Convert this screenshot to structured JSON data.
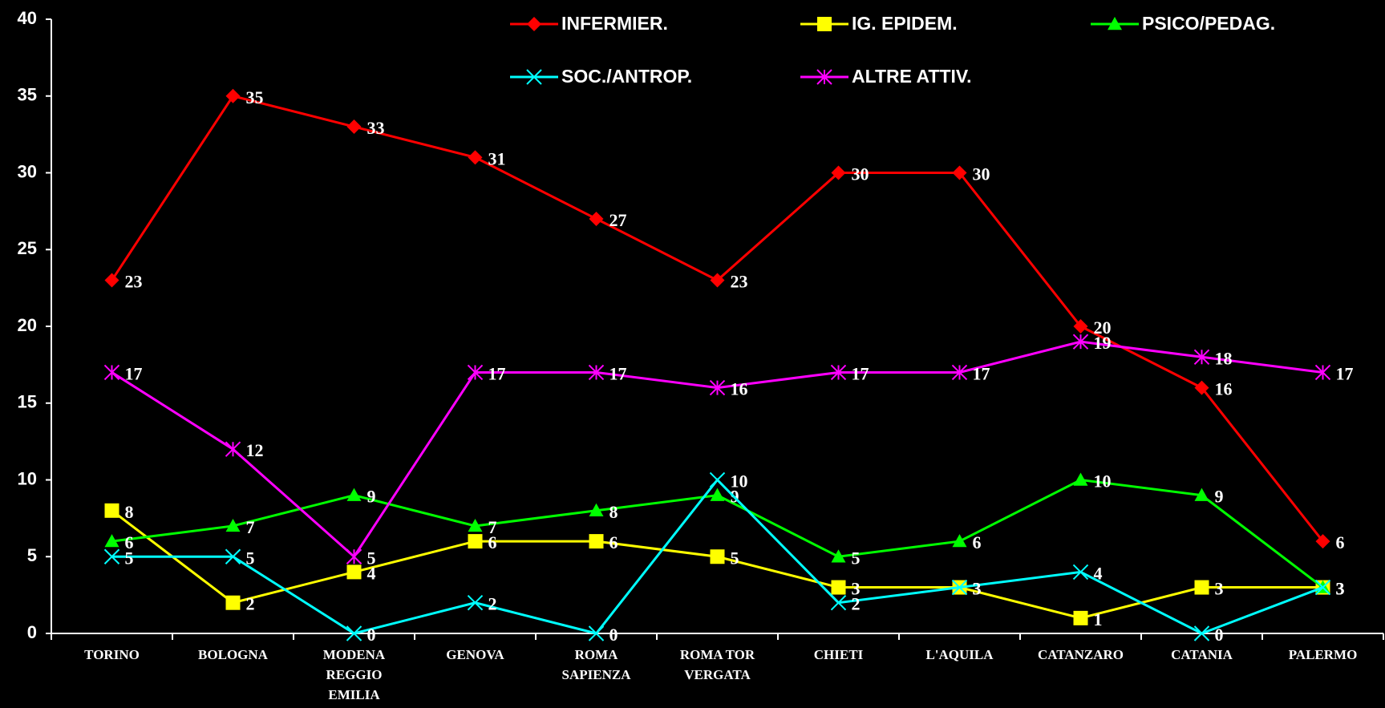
{
  "chart_data": {
    "type": "line",
    "categories": [
      "TORINO",
      "BOLOGNA",
      "MODENA REGGIO EMILIA",
      "GENOVA",
      "ROMA SAPIENZA",
      "ROMA TOR VERGATA",
      "CHIETI",
      "L'AQUILA",
      "CATANZARO",
      "CATANIA",
      "PALERMO"
    ],
    "series": [
      {
        "name": "INFERMIER.",
        "color": "#ff0000",
        "marker": "diamond",
        "values": [
          23,
          35,
          33,
          31,
          27,
          23,
          30,
          30,
          20,
          16,
          6
        ]
      },
      {
        "name": "IG. EPIDEM.",
        "color": "#ffff00",
        "marker": "square",
        "values": [
          8,
          2,
          4,
          6,
          6,
          5,
          3,
          3,
          1,
          3,
          3
        ]
      },
      {
        "name": "PSICO/PEDAG.",
        "color": "#00ff00",
        "marker": "triangle",
        "values": [
          6,
          7,
          9,
          7,
          8,
          9,
          5,
          6,
          10,
          9,
          3
        ]
      },
      {
        "name": "SOC./ANTROP.",
        "color": "#00ffff",
        "marker": "x",
        "values": [
          5,
          5,
          0,
          2,
          0,
          10,
          2,
          3,
          4,
          0,
          3
        ]
      },
      {
        "name": "ALTRE ATTIV.",
        "color": "#ff00ff",
        "marker": "star",
        "values": [
          17,
          12,
          5,
          17,
          17,
          16,
          17,
          17,
          19,
          18,
          17
        ]
      }
    ],
    "ylim": [
      0,
      40
    ],
    "yticks": [
      0,
      5,
      10,
      15,
      20,
      25,
      30,
      35,
      40
    ],
    "grid": false,
    "legend": "top"
  }
}
